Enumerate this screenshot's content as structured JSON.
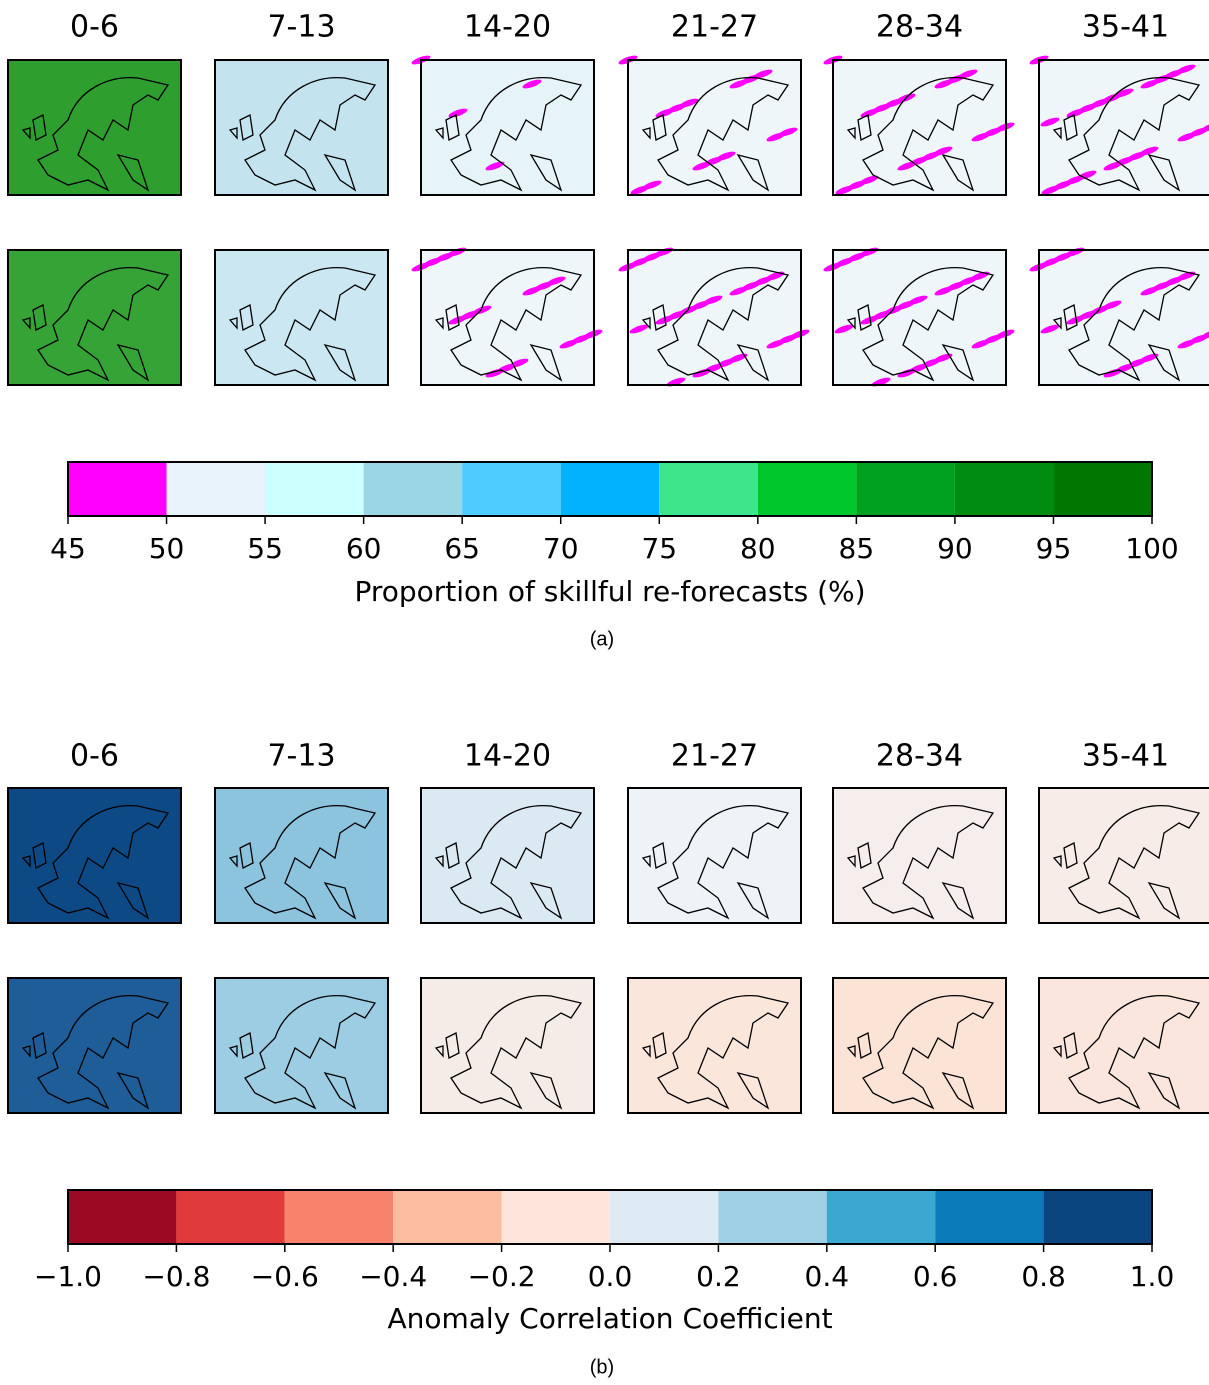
{
  "chart_data": [
    {
      "type": "colorbar",
      "panel_label": "(a)",
      "column_titles": [
        "0-6",
        "7-13",
        "14-20",
        "21-27",
        "28-34",
        "35-41"
      ],
      "xlabel": "Proportion of skillful re-forecasts (%)",
      "xlim": [
        45,
        100
      ],
      "xticks": [
        45,
        50,
        55,
        60,
        65,
        70,
        75,
        80,
        85,
        90,
        95,
        100
      ],
      "colors": [
        "#ff00ff",
        "#e8f2fa",
        "#ccffff",
        "#99d6e6",
        "#4dccff",
        "#00b2ff",
        "#3de68a",
        "#00c82c",
        "#00a020",
        "#008c10",
        "#007800",
        "#006400"
      ]
    },
    {
      "type": "colorbar",
      "panel_label": "(b)",
      "column_titles": [
        "0-6",
        "7-13",
        "14-20",
        "21-27",
        "28-34",
        "35-41"
      ],
      "xlabel": "Anomaly Correlation Coefficient",
      "xlim": [
        -1,
        1
      ],
      "xticks": [
        {
          "value": -1,
          "label": "−1.0"
        },
        {
          "value": -0.8,
          "label": "−0.8"
        },
        {
          "value": -0.6,
          "label": "−0.6"
        },
        {
          "value": -0.4,
          "label": "−0.4"
        },
        {
          "value": -0.2,
          "label": "−0.2"
        },
        {
          "value": 0,
          "label": "0.0"
        },
        0.2,
        0.4,
        0.6,
        0.8,
        {
          "value": 1,
          "label": "1.0"
        }
      ],
      "colors": [
        "#9b0a22",
        "#e03a3a",
        "#f8826a",
        "#fcbca0",
        "#fde5db",
        "#dde9f3",
        "#9fcfe5",
        "#3aa8d0",
        "#0a7ab8",
        "#0b4580"
      ]
    }
  ]
}
